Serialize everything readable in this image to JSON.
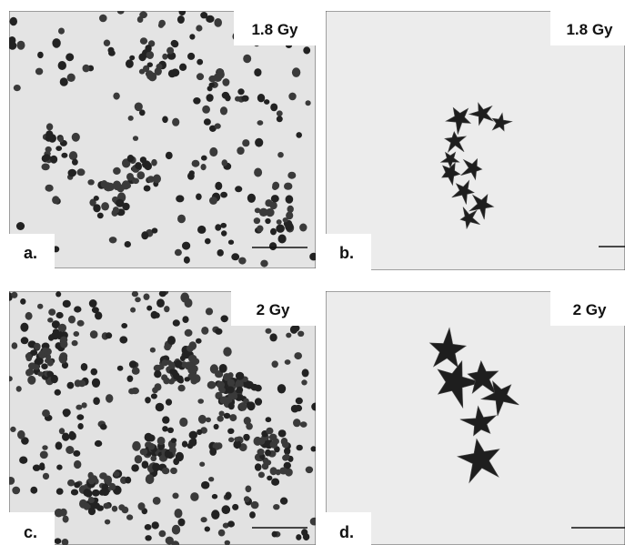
{
  "panels": [
    {
      "label": "a.",
      "dose": "1.8 Gy"
    },
    {
      "label": "b.",
      "dose": "1.8 Gy"
    },
    {
      "label": "c.",
      "dose": "2 Gy"
    },
    {
      "label": "d.",
      "dose": "2 Gy"
    }
  ]
}
